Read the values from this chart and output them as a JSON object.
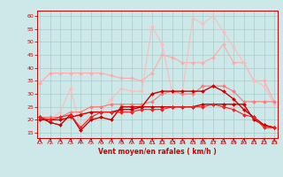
{
  "x": [
    0,
    1,
    2,
    3,
    4,
    5,
    6,
    7,
    8,
    9,
    10,
    11,
    12,
    13,
    14,
    15,
    16,
    17,
    18,
    19,
    20,
    21,
    22,
    23
  ],
  "series": [
    {
      "name": "line1_light_upper",
      "color": "#ffaaaa",
      "linewidth": 0.8,
      "markersize": 2.0,
      "y": [
        34,
        38,
        38,
        38,
        38,
        38,
        38,
        37,
        36,
        36,
        35,
        38,
        45,
        44,
        42,
        42,
        42,
        44,
        49,
        42,
        42,
        35,
        35,
        27
      ]
    },
    {
      "name": "line2_lightest",
      "color": "#ffbbbb",
      "linewidth": 0.8,
      "markersize": 2.0,
      "y": [
        21,
        20,
        23,
        32,
        17,
        23,
        23,
        28,
        32,
        31,
        31,
        56,
        49,
        30,
        31,
        59,
        57,
        60,
        54,
        48,
        42,
        35,
        33,
        26
      ]
    },
    {
      "name": "line3_medium",
      "color": "#ff7777",
      "linewidth": 0.8,
      "markersize": 2.0,
      "y": [
        21,
        21,
        21,
        23,
        23,
        25,
        25,
        26,
        26,
        26,
        26,
        27,
        30,
        31,
        30,
        30,
        33,
        33,
        33,
        31,
        27,
        27,
        27,
        27
      ]
    },
    {
      "name": "line4_dark",
      "color": "#cc0000",
      "linewidth": 1.0,
      "markersize": 2.0,
      "y": [
        21,
        19,
        18,
        22,
        16,
        20,
        21,
        20,
        25,
        25,
        25,
        30,
        31,
        31,
        31,
        31,
        31,
        33,
        31,
        28,
        24,
        21,
        18,
        17
      ]
    },
    {
      "name": "line5_dark2",
      "color": "#cc0000",
      "linewidth": 1.0,
      "markersize": 2.0,
      "y": [
        20,
        20,
        20,
        21,
        22,
        23,
        23,
        23,
        24,
        24,
        25,
        25,
        25,
        25,
        25,
        25,
        26,
        26,
        26,
        26,
        26,
        20,
        18,
        17
      ]
    },
    {
      "name": "line6_dark3",
      "color": "#ee2222",
      "linewidth": 0.8,
      "markersize": 2.0,
      "y": [
        21,
        20,
        21,
        22,
        17,
        21,
        23,
        23,
        23,
        23,
        24,
        24,
        24,
        25,
        25,
        25,
        25,
        26,
        25,
        24,
        22,
        21,
        17,
        17
      ]
    }
  ],
  "xlabel": "Vent moyen/en rafales ( km/h )",
  "xlim": [
    -0.3,
    23.3
  ],
  "ylim": [
    13,
    62
  ],
  "yticks": [
    15,
    20,
    25,
    30,
    35,
    40,
    45,
    50,
    55,
    60
  ],
  "xticks": [
    0,
    1,
    2,
    3,
    4,
    5,
    6,
    7,
    8,
    9,
    10,
    11,
    12,
    13,
    14,
    15,
    16,
    17,
    18,
    19,
    20,
    21,
    22,
    23
  ],
  "bg_color": "#cce8e8",
  "grid_color": "#aacccc",
  "tick_color": "#cc0000",
  "label_color": "#cc0000"
}
